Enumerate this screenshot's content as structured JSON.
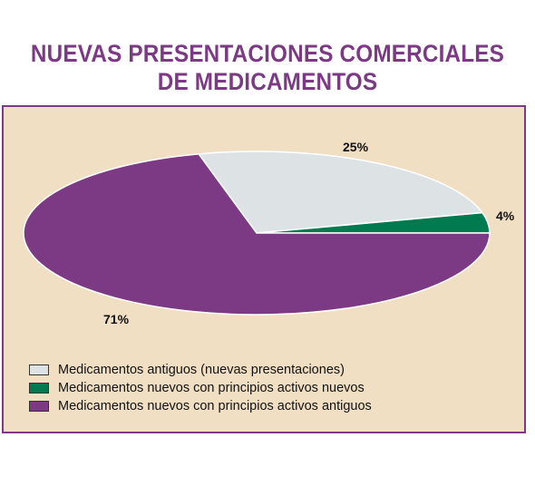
{
  "chart_data": {
    "type": "pie",
    "title": "NUEVAS PRESENTACIONES COMERCIALES DE MEDICAMENTOS",
    "title_lines": [
      "NUEVAS PRESENTACIONES COMERCIALES",
      "DE MEDICAMENTOS"
    ],
    "legend_position": "bottom-left",
    "slices": [
      {
        "name": "Medicamentos antiguos (nuevas presentaciones)",
        "value": 25,
        "label": "25%",
        "color": "#dde3e4"
      },
      {
        "name": "Medicamentos nuevos con principios activos nuevos",
        "value": 4,
        "label": "4%",
        "color": "#007a4e"
      },
      {
        "name": "Medicamentos nuevos con principios activos antiguos",
        "value": 71,
        "label": "71%",
        "color": "#7b3a83"
      }
    ]
  }
}
